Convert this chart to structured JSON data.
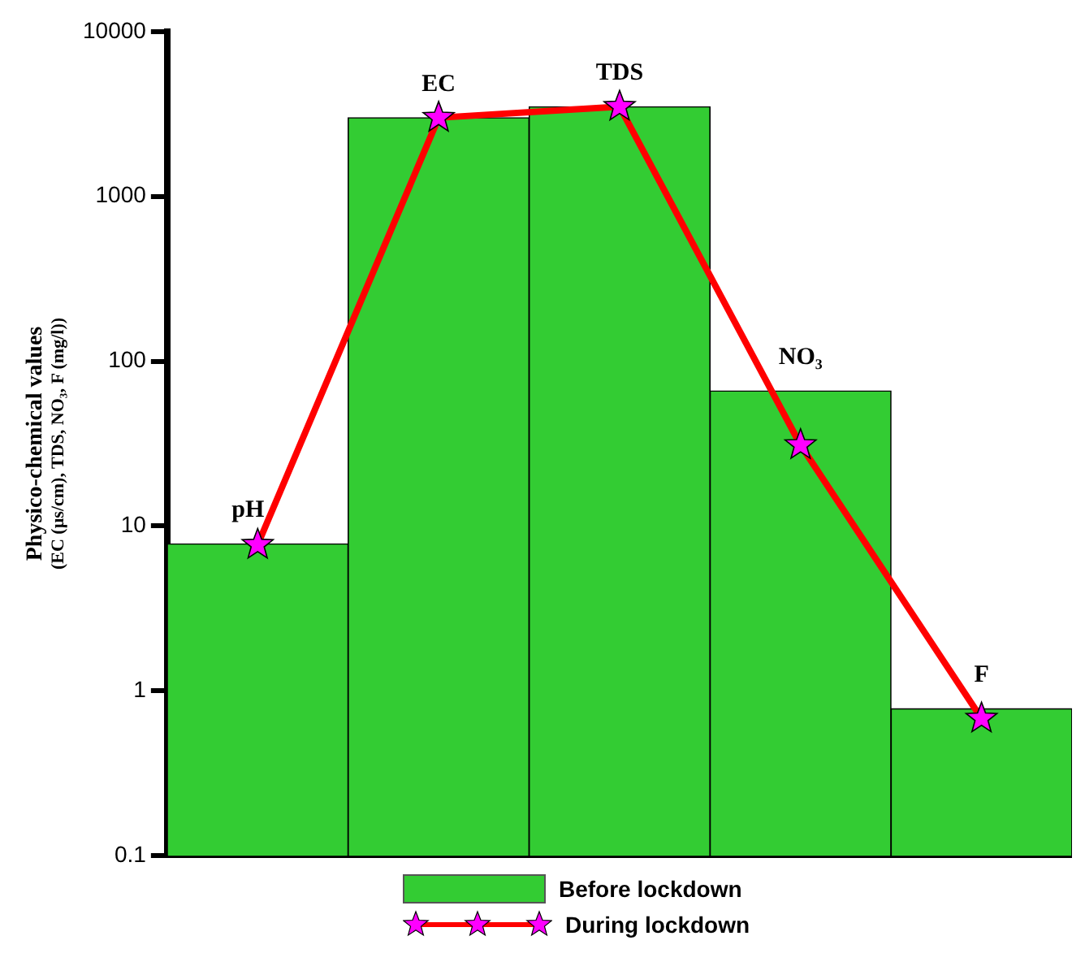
{
  "chart_data": {
    "type": "bar",
    "ylabel": "Physico-chemical values\n(EC (µs/cm), TDS, NO₃, F (mg/l))",
    "categories": [
      "pH",
      "EC",
      "TDS",
      "NO₃",
      "F"
    ],
    "series": [
      {
        "name": "Before lockdown",
        "color": "#33cc33",
        "values": [
          7.8,
          3000,
          3500,
          66,
          0.78
        ]
      },
      {
        "name": "During lockdown",
        "type": "line",
        "color": "#ff0000",
        "marker": "star",
        "values": [
          7.7,
          3000,
          3500,
          31,
          0.68
        ]
      }
    ],
    "log": "y",
    "ylim": [
      0.1,
      10000
    ],
    "yticks": [
      0.1,
      1,
      10,
      100,
      1000,
      10000
    ],
    "grid": false,
    "legend": "bottom",
    "tick_labels": "y"
  }
}
